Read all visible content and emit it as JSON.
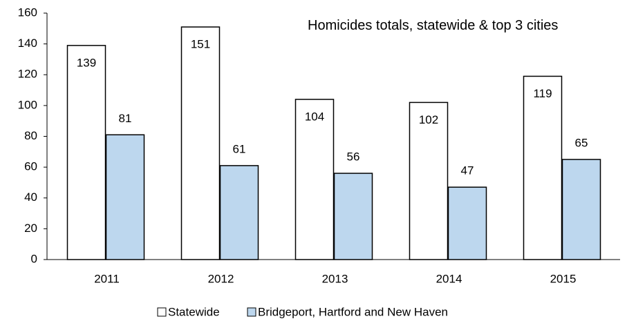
{
  "chart_data": {
    "type": "bar",
    "title": "Homicides totals, statewide & top 3 cities",
    "categories": [
      "2011",
      "2012",
      "2013",
      "2014",
      "2015"
    ],
    "series": [
      {
        "name": "Statewide",
        "color": "#ffffff",
        "values": [
          139,
          151,
          104,
          102,
          119
        ]
      },
      {
        "name": "Bridgeport, Hartford and New Haven",
        "color": "#bdd7ee",
        "values": [
          81,
          61,
          56,
          47,
          65
        ]
      }
    ],
    "ylim": [
      0,
      160
    ],
    "yticks": [
      0,
      20,
      40,
      60,
      80,
      100,
      120,
      140,
      160
    ],
    "grid": false,
    "legend": "bottom"
  }
}
